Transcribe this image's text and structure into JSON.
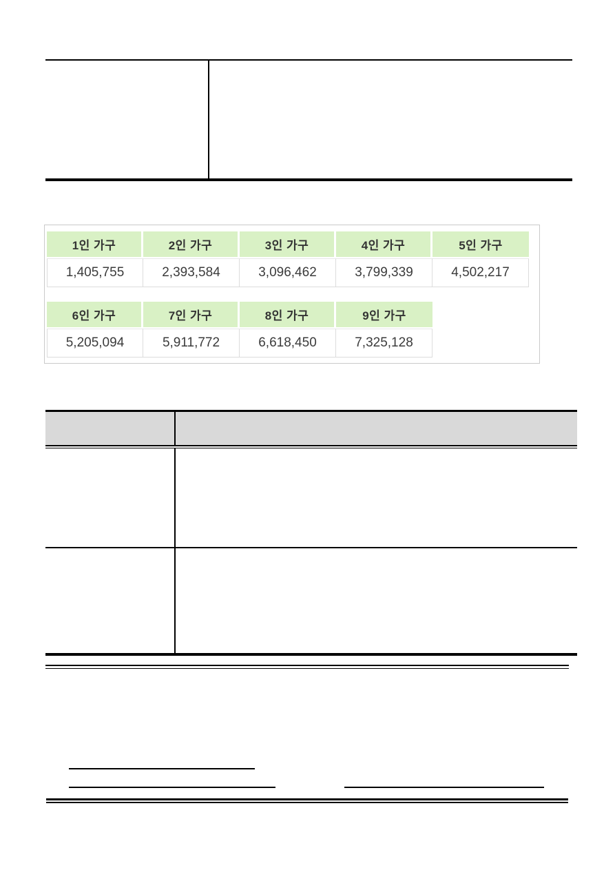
{
  "document": {
    "household_table": {
      "type": "table",
      "title": "",
      "groups": [
        {
          "headers": [
            "1인 가구",
            "2인 가구",
            "3인 가구",
            "4인 가구",
            "5인 가구"
          ],
          "values": [
            "1,405,755",
            "2,393,584",
            "3,096,462",
            "3,799,339",
            "4,502,217"
          ]
        },
        {
          "headers": [
            "6인 가구",
            "7인 가구",
            "8인 가구",
            "9인 가구"
          ],
          "values": [
            "5,205,094",
            "5,911,772",
            "6,618,450",
            "7,325,128"
          ]
        }
      ]
    },
    "colors": {
      "household_header_green": "#d9f1c5",
      "mid_table_header_gray": "#d9d9d9",
      "container_border_gray": "#c9c9c9",
      "cell_border_gray": "#dcdcdc",
      "rule_black": "#000000",
      "text_dark": "#3b3b3b"
    }
  }
}
